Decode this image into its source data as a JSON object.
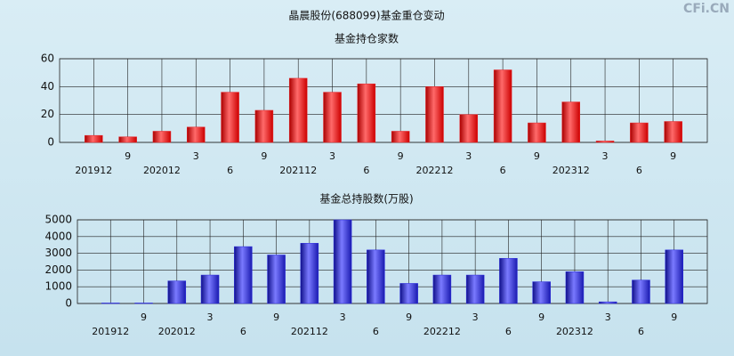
{
  "title": "晶晨股份(688099)基金重仓变动",
  "watermark": "CFi.CN",
  "chart_data": [
    {
      "type": "bar",
      "title": "基金持仓家数",
      "categories": [
        "201912",
        "9",
        "202012",
        "3",
        "6",
        "9",
        "202112",
        "3",
        "6",
        "9",
        "202212",
        "3",
        "6",
        "9",
        "202312",
        "3",
        "6",
        "9"
      ],
      "values": [
        5,
        4,
        8,
        11,
        36,
        23,
        46,
        36,
        42,
        8,
        40,
        20,
        52,
        14,
        29,
        1,
        14,
        15
      ],
      "color": "#e8262b",
      "ylim": [
        0,
        60
      ],
      "yticks": [
        0,
        20,
        40,
        60
      ],
      "grid": true
    },
    {
      "type": "bar",
      "title": "基金总持股数(万股)",
      "categories": [
        "201912",
        "9",
        "202012",
        "3",
        "6",
        "9",
        "202112",
        "3",
        "6",
        "9",
        "202212",
        "3",
        "6",
        "9",
        "202312",
        "3",
        "6",
        "9"
      ],
      "values": [
        30,
        30,
        1350,
        1700,
        3400,
        2900,
        3600,
        5000,
        3200,
        1200,
        1700,
        1700,
        2700,
        1300,
        1900,
        100,
        1400,
        3200
      ],
      "color": "#2a2ae0",
      "ylim": [
        0,
        5000
      ],
      "yticks": [
        0,
        1000,
        2000,
        3000,
        4000,
        5000
      ],
      "grid": true
    }
  ]
}
